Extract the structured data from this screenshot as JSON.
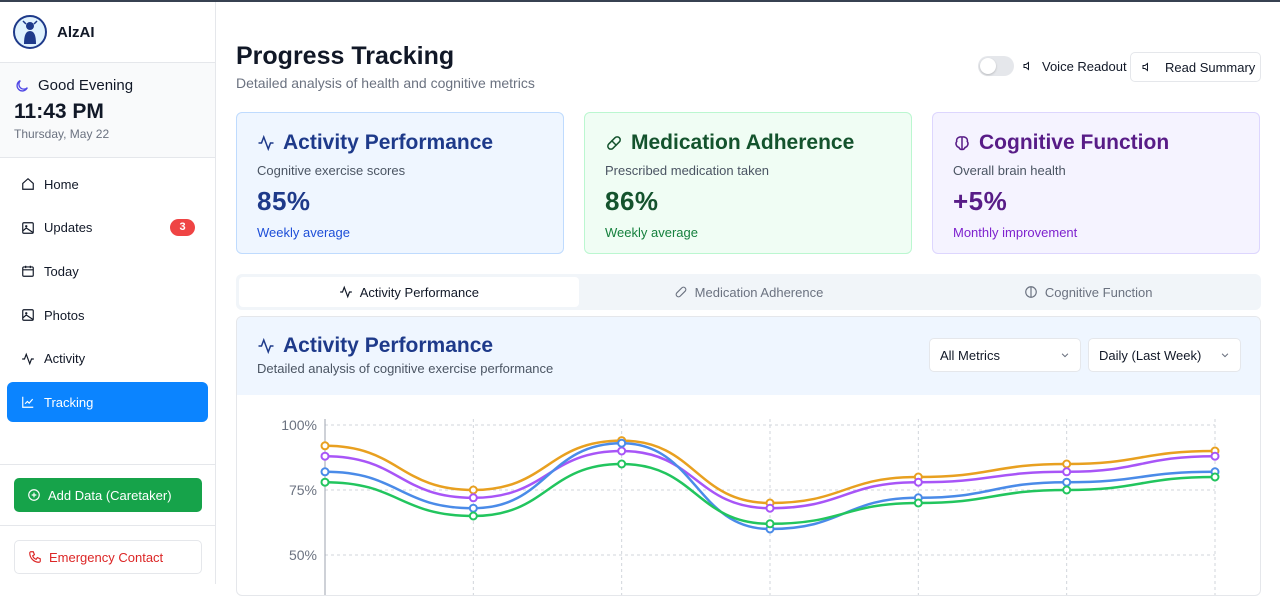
{
  "app": {
    "name": "AlzAI"
  },
  "greeting": {
    "text": "Good Evening",
    "time": "11:43 PM",
    "date": "Thursday, May 22"
  },
  "nav": {
    "items": [
      {
        "label": "Home",
        "icon": "home-icon"
      },
      {
        "label": "Updates",
        "icon": "image-icon",
        "badge": "3"
      },
      {
        "label": "Today",
        "icon": "calendar-icon"
      },
      {
        "label": "Photos",
        "icon": "image-icon"
      },
      {
        "label": "Activity",
        "icon": "activity-icon"
      },
      {
        "label": "Tracking",
        "icon": "chart-icon",
        "active": true
      }
    ]
  },
  "actions": {
    "add_data": "Add Data (Caretaker)",
    "emergency": "Emergency Contact"
  },
  "page": {
    "title": "Progress Tracking",
    "subtitle": "Detailed analysis of health and cognitive metrics"
  },
  "voice": {
    "label": "Voice Readout",
    "read_summary": "Read Summary"
  },
  "cards": [
    {
      "title": "Activity Performance",
      "subtitle": "Cognitive exercise scores",
      "value": "85%",
      "footer": "Weekly average"
    },
    {
      "title": "Medication Adherence",
      "subtitle": "Prescribed medication taken",
      "value": "86%",
      "footer": "Weekly average"
    },
    {
      "title": "Cognitive Function",
      "subtitle": "Overall brain health",
      "value": "+5%",
      "footer": "Monthly improvement"
    }
  ],
  "tabs": [
    "Activity Performance",
    "Medication Adherence",
    "Cognitive Function"
  ],
  "panel": {
    "title": "Activity Performance",
    "subtitle": "Detailed analysis of cognitive exercise performance",
    "metric_select": "All Metrics",
    "period_select": "Daily (Last Week)"
  },
  "colors": {
    "accent": "#0b84ff",
    "green": "#16a34a",
    "orange": "#e8a020",
    "purple": "#a855f7",
    "blue": "#4a8be8",
    "series_green": "#22c55e"
  },
  "chart_data": {
    "type": "line",
    "ylim": [
      40,
      100
    ],
    "y_ticks": [
      "100%",
      "75%",
      "50%"
    ],
    "y_tick_values": [
      100,
      75,
      50
    ],
    "x": [
      0,
      1,
      2,
      3,
      4,
      5,
      6
    ],
    "series": [
      {
        "name": "orange",
        "color": "#e8a020",
        "values": [
          92,
          75,
          94,
          70,
          80,
          85,
          90
        ]
      },
      {
        "name": "purple",
        "color": "#a855f7",
        "values": [
          88,
          72,
          90,
          68,
          78,
          82,
          88
        ]
      },
      {
        "name": "blue",
        "color": "#4a8be8",
        "values": [
          82,
          68,
          93,
          60,
          72,
          78,
          82
        ]
      },
      {
        "name": "green",
        "color": "#22c55e",
        "values": [
          78,
          65,
          85,
          62,
          70,
          75,
          80
        ]
      }
    ]
  }
}
